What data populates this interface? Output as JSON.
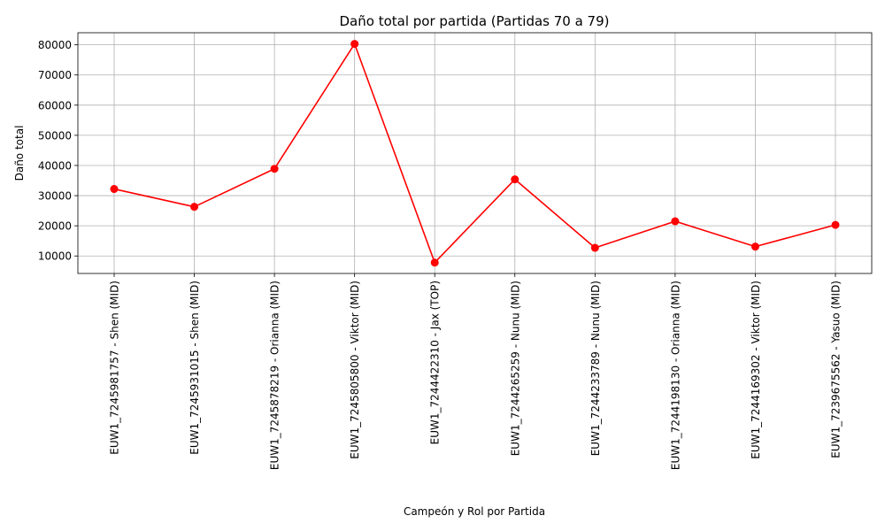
{
  "chart_data": {
    "type": "line",
    "title": "Daño total por partida (Partidas 70 a 79)",
    "xlabel": "Campeón y Rol por Partida",
    "ylabel": "Daño total",
    "categories": [
      "EUW1_7245981757 - Shen (MID)",
      "EUW1_7245931015 - Shen (MID)",
      "EUW1_7245878219 - Orianna (MID)",
      "EUW1_7245805800 - Viktor (MID)",
      "EUW1_7244422310 - Jax (TOP)",
      "EUW1_7244265259 - Nunu (MID)",
      "EUW1_7244233789 - Nunu (MID)",
      "EUW1_7244198130 - Orianna (MID)",
      "EUW1_7244169302 - Viktor (MID)",
      "EUW1_7239675562 - Yasuo (MID)"
    ],
    "values": [
      32200,
      26300,
      38900,
      80300,
      7800,
      35400,
      12700,
      21500,
      13100,
      20300
    ],
    "ylim": [
      4200,
      84000
    ],
    "yticks": [
      10000,
      20000,
      30000,
      40000,
      50000,
      60000,
      70000,
      80000
    ],
    "grid": true,
    "line_color": "#ff0000",
    "marker_color": "#ff0000",
    "grid_color": "#b0b0b0"
  }
}
